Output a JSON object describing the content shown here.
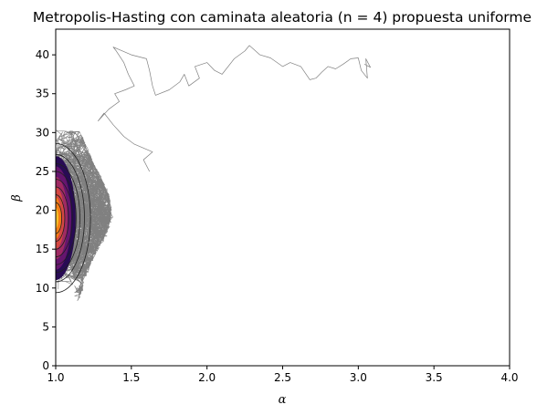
{
  "chart_data": {
    "type": "line",
    "title": "Metropolis-Hasting con caminata aleatoria (n = 4) propuesta uniforme",
    "xlabel": "α",
    "ylabel": "β",
    "xlim": [
      1.0,
      4.0
    ],
    "ylim": [
      0,
      43.3
    ],
    "x_ticks": [
      "1.0",
      "1.5",
      "2.0",
      "2.5",
      "3.0",
      "3.5",
      "4.0"
    ],
    "x_tick_values": [
      1.0,
      1.5,
      2.0,
      2.5,
      3.0,
      3.5,
      4.0
    ],
    "y_ticks": [
      "0",
      "5",
      "10",
      "15",
      "20",
      "25",
      "30",
      "35",
      "40"
    ],
    "y_tick_values": [
      0,
      5,
      10,
      15,
      20,
      25,
      30,
      35,
      40
    ],
    "grid": false,
    "trace_color": "#808080",
    "contour_line_color": "#202020",
    "density_colormap": "inferno",
    "density_center": {
      "x": 1.0,
      "y": 19.0
    },
    "chain_tail": {
      "x": [
        1.62,
        1.58,
        1.64,
        1.52,
        1.45,
        1.38,
        1.32,
        1.28,
        1.35,
        1.42,
        1.39,
        1.46,
        1.52,
        1.48,
        1.45,
        1.4,
        1.38,
        1.5,
        1.6,
        1.62,
        1.64,
        1.66,
        1.75,
        1.82,
        1.85,
        1.88,
        1.95,
        1.92,
        2.0,
        2.05,
        2.1,
        2.18,
        2.25,
        2.28,
        2.35,
        2.42,
        2.5,
        2.55,
        2.62,
        2.68,
        2.72,
        2.76,
        2.8,
        2.85,
        2.9,
        2.95,
        3.0,
        3.02,
        3.06,
        3.05,
        3.08,
        3.04
      ],
      "y": [
        25.0,
        26.5,
        27.5,
        28.5,
        29.5,
        31.0,
        32.5,
        31.5,
        33.0,
        34.0,
        35.0,
        35.5,
        36.0,
        37.5,
        39.0,
        40.5,
        41.0,
        40.0,
        39.5,
        38.0,
        36.0,
        34.8,
        35.5,
        36.5,
        37.5,
        36.0,
        37.0,
        38.5,
        39.0,
        38.0,
        37.5,
        39.5,
        40.5,
        41.2,
        40.0,
        39.6,
        38.5,
        39.0,
        38.5,
        36.8,
        37.0,
        37.8,
        38.5,
        38.2,
        38.8,
        39.5,
        39.6,
        38.0,
        37.0,
        39.5,
        38.4,
        38.8
      ]
    }
  }
}
